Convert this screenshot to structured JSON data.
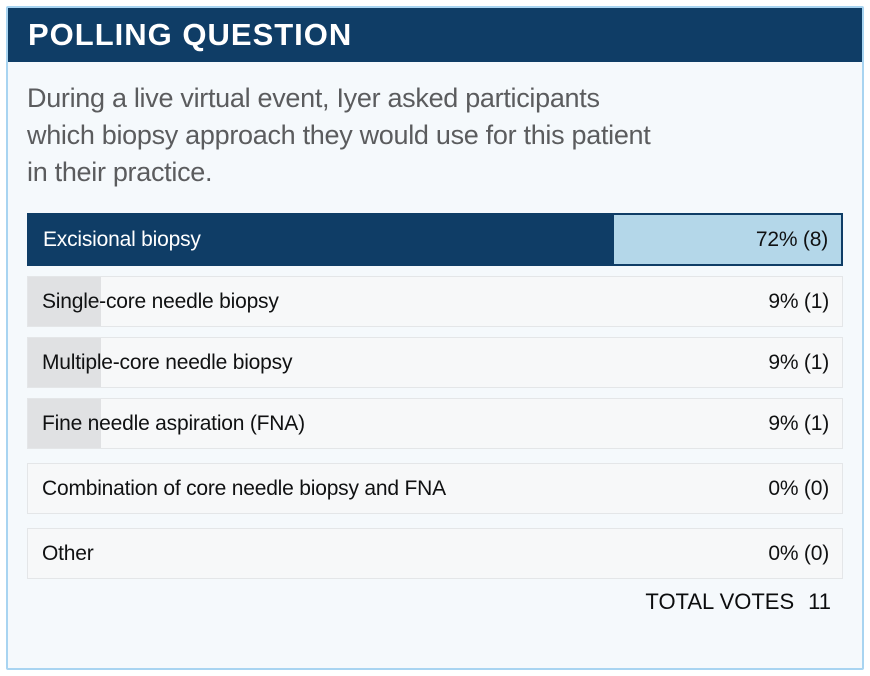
{
  "header": {
    "title": "POLLING QUESTION"
  },
  "question": {
    "lines": [
      "During a live virtual event, Iyer asked participants",
      "which biopsy approach they would use for this patient",
      "in their practice."
    ]
  },
  "results": [
    {
      "label": "Excisional biopsy",
      "value": "72% (8)",
      "pct": 72,
      "votes": 8,
      "highlight": true
    },
    {
      "label": "Single-core needle biopsy",
      "value": "9% (1)",
      "pct": 9,
      "votes": 1,
      "highlight": false
    },
    {
      "label": "Multiple-core needle biopsy",
      "value": "9% (1)",
      "pct": 9,
      "votes": 1,
      "highlight": false
    },
    {
      "label": "Fine needle aspiration (FNA)",
      "value": "9% (1)",
      "pct": 9,
      "votes": 1,
      "highlight": false
    },
    {
      "label": "Combination of core needle biopsy and FNA",
      "value": "0% (0)",
      "pct": 0,
      "votes": 0,
      "highlight": false
    },
    {
      "label": "Other",
      "value": "0% (0)",
      "pct": 0,
      "votes": 0,
      "highlight": false
    }
  ],
  "footer": {
    "total_label": "TOTAL VOTES",
    "total_value": "11"
  },
  "chart_data": {
    "type": "bar",
    "title": "POLLING QUESTION",
    "subtitle": "During a live virtual event, Iyer asked participants which biopsy approach they would use for this patient in their practice.",
    "categories": [
      "Excisional biopsy",
      "Single-core needle biopsy",
      "Multiple-core needle biopsy",
      "Fine needle aspiration (FNA)",
      "Combination of core needle biopsy and FNA",
      "Other"
    ],
    "series": [
      {
        "name": "percent",
        "values": [
          72,
          9,
          9,
          9,
          0,
          0
        ]
      },
      {
        "name": "votes",
        "values": [
          8,
          1,
          1,
          1,
          0,
          0
        ]
      }
    ],
    "total_votes": 11,
    "orientation": "horizontal",
    "xlim": [
      0,
      100
    ],
    "grid": false,
    "legend": false
  },
  "colors": {
    "navy": "#0f3d66",
    "light_blue_fill": "#b4d7e9",
    "card_border": "#a8d4f1",
    "card_background": "#f5f9fc",
    "row_background": "#f7f8f9",
    "row_border": "#e4e6e8",
    "gray_bar": "#e0e1e3",
    "question_text": "#5b5c5e",
    "header_text": "#ffffff"
  }
}
